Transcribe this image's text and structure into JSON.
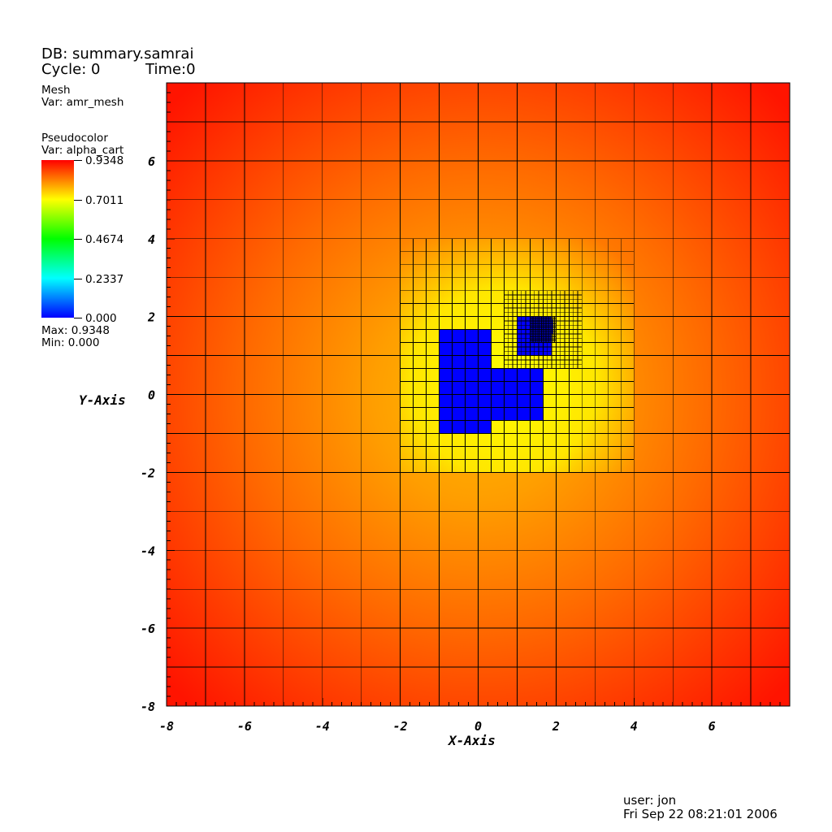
{
  "header": {
    "db": "DB: summary.samrai",
    "cycle": "Cycle: 0",
    "time": "Time:0"
  },
  "legend_mesh": {
    "title": "Mesh",
    "var": "Var: amr_mesh"
  },
  "legend_pseudocolor": {
    "title": "Pseudocolor",
    "var": "Var: alpha_cart",
    "ticks": [
      "0.9348",
      "0.7011",
      "0.4674",
      "0.2337",
      "0.000"
    ],
    "max": "Max:  0.9348",
    "min": "Min:  0.000"
  },
  "footer": {
    "user": "user: jon",
    "date": "Fri Sep 22 08:21:01 2006"
  },
  "chart_data": {
    "type": "heatmap",
    "xlabel": "X-Axis",
    "ylabel": "Y-Axis",
    "xlim": [
      -8,
      8
    ],
    "ylim": [
      -8,
      8
    ],
    "x_ticks": [
      "-8",
      "-6",
      "-4",
      "-2",
      "0",
      "2",
      "4",
      "6"
    ],
    "y_ticks": [
      "-8",
      "-6",
      "-4",
      "-2",
      "0",
      "2",
      "4",
      "6"
    ],
    "colorscale": [
      "#0000ff",
      "#00ffff",
      "#00ff00",
      "#ffff00",
      "#ff0000"
    ],
    "value_range": [
      0.0,
      0.9348
    ],
    "amr_levels": [
      {
        "level": 0,
        "x_range": [
          -8,
          8
        ],
        "y_range": [
          -8,
          8
        ],
        "cell_size": 1
      },
      {
        "level": 1,
        "x_range": [
          -2,
          4
        ],
        "y_range": [
          -2,
          4
        ],
        "cell_size": 0.333
      },
      {
        "level": 2,
        "x_range": [
          0.667,
          2.667
        ],
        "y_range": [
          0.667,
          2.667
        ],
        "cell_size": 0.111
      },
      {
        "level": 3,
        "x_range": [
          1.333,
          2.0
        ],
        "y_range": [
          1.333,
          2.0
        ],
        "cell_size": 0.037
      }
    ],
    "zero_regions": [
      {
        "x": [
          -1.0,
          0.333
        ],
        "y": [
          -1.0,
          1.667
        ]
      },
      {
        "x": [
          -1.0,
          1.667
        ],
        "y": [
          -0.667,
          0.667
        ]
      },
      {
        "x": [
          0.333,
          1.667
        ],
        "y": [
          -0.333,
          0.333
        ]
      },
      {
        "x": [
          1.0,
          1.889
        ],
        "y": [
          1.0,
          2.0
        ]
      },
      {
        "x": [
          1.333,
          1.926
        ],
        "y": [
          1.556,
          1.926
        ]
      }
    ]
  }
}
